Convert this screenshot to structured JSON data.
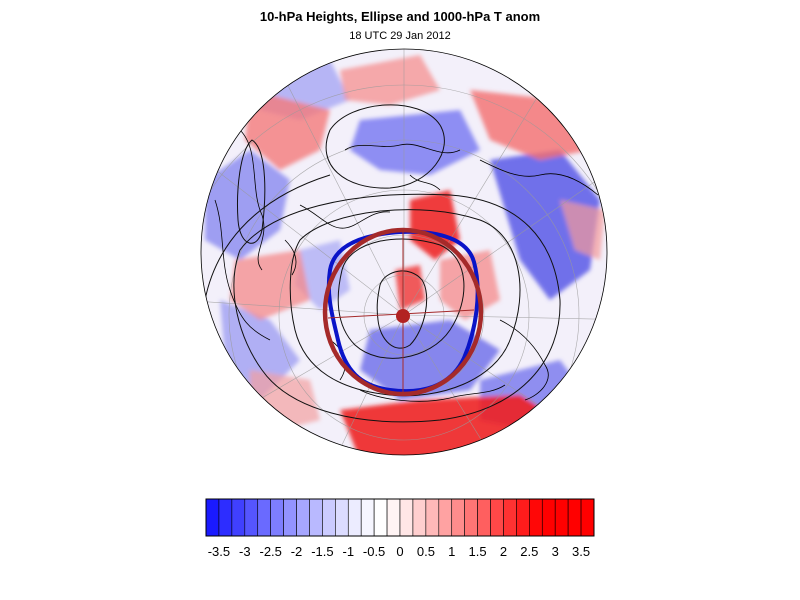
{
  "title": "10-hPa Heights, Ellipse and 1000-hPa T anom",
  "subtitle": "18 UTC 29 Jan 2012",
  "colors": {
    "ellipse_blue": "#0a14c8",
    "ellipse_red": "#a52a2a",
    "center_marker": "#b22222",
    "coastline": "#000000",
    "contour": "#000000",
    "gridline": "#999999"
  },
  "colorbar": {
    "min": -3.75,
    "max": 3.75,
    "step": 0.25,
    "colors": [
      "#1a1aff",
      "#2d2dff",
      "#4040ff",
      "#5555ff",
      "#6a6aff",
      "#7e7eff",
      "#9393ff",
      "#a6a6ff",
      "#b9b9ff",
      "#cbcbff",
      "#dcdcff",
      "#ececff",
      "#f6f6ff",
      "#ffffff",
      "#fff4f4",
      "#ffe6e6",
      "#ffcfcf",
      "#ffb9b9",
      "#ffa2a2",
      "#ff8c8c",
      "#ff7575",
      "#ff5f5f",
      "#ff4848",
      "#ff3232",
      "#ff1c1c",
      "#ff0707",
      "#ff0000",
      "#ff0000",
      "#ff0000",
      "#ff0000"
    ],
    "labels": [
      "-3.5",
      "-3",
      "-2.5",
      "-2",
      "-1.5",
      "-1",
      "-0.5",
      "0",
      "0.5",
      "1",
      "1.5",
      "2",
      "2.5",
      "3",
      "3.5"
    ]
  }
}
